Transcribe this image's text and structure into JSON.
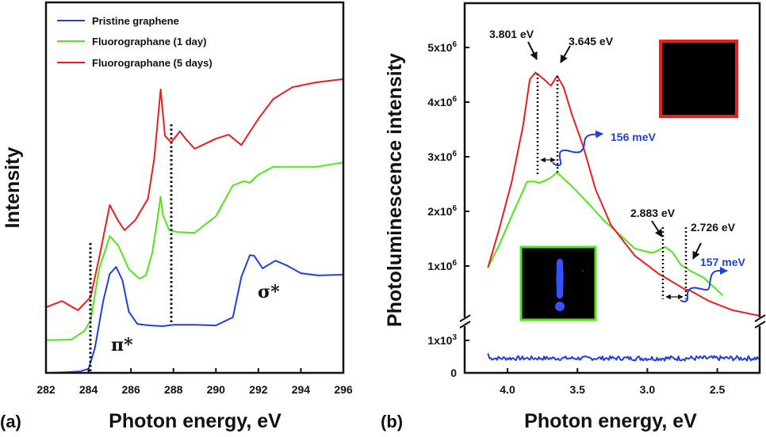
{
  "chart_data": [
    {
      "panel": "(a)",
      "type": "line",
      "title": "",
      "xlabel": "Photon energy, eV",
      "ylabel": "Intensity",
      "xlim": [
        282,
        296
      ],
      "ylim": [
        0,
        100
      ],
      "x_ticks": [
        282,
        284,
        286,
        288,
        290,
        292,
        294,
        296
      ],
      "x_tick_labels": [
        "282",
        "284",
        "286",
        "288",
        "290",
        "292",
        "294",
        "296"
      ],
      "grid": false,
      "legend": {
        "placement": "top-left",
        "entries": [
          "Pristine graphene",
          "Fluorographane (1 day)",
          "Fluorographane (5 days)"
        ]
      },
      "series": [
        {
          "name": "Pristine graphene",
          "color": "#1f3fe0",
          "x": [
            282.0,
            283.0,
            283.6,
            284.0,
            284.3,
            284.7,
            285.0,
            285.3,
            285.6,
            285.9,
            286.3,
            286.9,
            287.5,
            288.0,
            289.0,
            290.0,
            290.8,
            291.2,
            291.6,
            291.8,
            292.2,
            292.8,
            293.3,
            294.0,
            294.8,
            296.0
          ],
          "y": [
            0.0,
            0.2,
            0.4,
            1.1,
            6.6,
            19.5,
            26.7,
            28.6,
            25.0,
            16.5,
            13.2,
            12.8,
            12.6,
            13.0,
            13.0,
            12.8,
            15.0,
            25.9,
            31.8,
            31.6,
            28.2,
            30.3,
            29.1,
            26.9,
            26.3,
            26.5
          ]
        },
        {
          "name": "Fluorographane (1 day)",
          "color": "#4ee619",
          "x": [
            282.0,
            283.2,
            283.8,
            284.1,
            284.5,
            285.0,
            285.4,
            285.9,
            286.4,
            286.7,
            287.0,
            287.2,
            287.4,
            287.5,
            287.8,
            288.2,
            289.0,
            290.0,
            290.8,
            291.3,
            291.6,
            292.0,
            292.7,
            293.3,
            294.7,
            296.0
          ],
          "y": [
            8.8,
            9.0,
            11.3,
            14.1,
            28.0,
            36.9,
            34.4,
            28.0,
            25.4,
            26.3,
            32.3,
            39.7,
            47.6,
            42.7,
            38.5,
            38.0,
            37.8,
            42.3,
            50.6,
            51.7,
            51.3,
            53.5,
            55.6,
            55.6,
            55.6,
            56.8
          ]
        },
        {
          "name": "Fluorographane (5 days)",
          "color": "#ee1c1c",
          "x": [
            282.0,
            282.75,
            283.5,
            284.1,
            284.5,
            285.0,
            285.4,
            285.7,
            286.2,
            286.8,
            287.1,
            287.4,
            287.6,
            287.9,
            288.3,
            288.6,
            289.0,
            290.0,
            290.6,
            291.2,
            292.0,
            292.7,
            293.6,
            294.7,
            296.0
          ],
          "y": [
            17.7,
            19.4,
            16.9,
            20.5,
            31.0,
            45.3,
            41.0,
            38.5,
            41.2,
            47.0,
            58.0,
            76.5,
            64.0,
            62.2,
            65.2,
            63.0,
            60.5,
            63.2,
            64.3,
            61.5,
            68.6,
            73.9,
            77.1,
            78.4,
            79.3
          ]
        }
      ],
      "annotations": [
        {
          "text": "π*",
          "x": 285.5,
          "y": 10
        },
        {
          "text": "σ*",
          "x": 292.4,
          "y": 27
        },
        {
          "type": "vline-dotted",
          "x": 284.1,
          "y_range": [
            0,
            35
          ]
        },
        {
          "type": "vline-dotted",
          "x": 287.9,
          "y_range": [
            13,
            67
          ]
        }
      ]
    },
    {
      "panel": "(b)",
      "type": "line",
      "title": "",
      "xlabel": "Photon energy, eV",
      "ylabel": "Photoluminescence intensity",
      "xlim": [
        4.31,
        2.2
      ],
      "x_reversed": true,
      "x_ticks": [
        4.0,
        3.5,
        3.0,
        2.5
      ],
      "x_tick_labels": [
        "4.0",
        "3.5",
        "3.0",
        "2.5"
      ],
      "y_axis_break": true,
      "ylim_lower": [
        0,
        1000
      ],
      "ylim_upper": [
        0,
        5900000
      ],
      "y_ticks_lower": [
        0,
        1000
      ],
      "y_tick_labels_lower": [
        "0",
        "1x10^3"
      ],
      "y_ticks_upper": [
        1000000,
        2000000,
        3000000,
        4000000,
        5000000
      ],
      "y_tick_labels_upper": [
        {
          "base": "1x10",
          "exp": "6"
        },
        {
          "base": "2x10",
          "exp": "6"
        },
        {
          "base": "3x10",
          "exp": "6"
        },
        {
          "base": "4x10",
          "exp": "6"
        },
        {
          "base": "5x10",
          "exp": "6"
        }
      ],
      "grid": false,
      "series": [
        {
          "name": "Pristine graphene",
          "color": "#1f3fe0",
          "segment": "lower",
          "x_range": [
            4.14,
            2.2
          ],
          "mean_y": 450,
          "noise_amplitude": 70,
          "start_y": 600
        },
        {
          "name": "Fluorographane (1 day)",
          "color": "#4ee619",
          "segment": "upper",
          "x": [
            4.14,
            4.06,
            3.95,
            3.86,
            3.81,
            3.77,
            3.7,
            3.645,
            3.54,
            3.43,
            3.31,
            3.14,
            3.09,
            3.03,
            2.97,
            2.95,
            2.89,
            2.87,
            2.82,
            2.76,
            2.72,
            2.7,
            2.6,
            2.46
          ],
          "y": [
            970000,
            1380000,
            2030000,
            2540000,
            2550000,
            2520000,
            2600000,
            2710000,
            2460000,
            2170000,
            1830000,
            1440000,
            1320000,
            1280000,
            1240000,
            1250000,
            1330000,
            1350000,
            1250000,
            1020000,
            960000,
            920000,
            790000,
            460000
          ]
        },
        {
          "name": "Fluorographane (5 days)",
          "color": "#ee1c1c",
          "x": [
            4.14,
            4.06,
            3.97,
            3.89,
            3.84,
            3.8,
            3.74,
            3.69,
            3.645,
            3.6,
            3.54,
            3.46,
            3.37,
            3.26,
            3.09,
            2.92,
            2.88,
            2.73,
            2.7,
            2.56,
            2.39,
            2.2
          ],
          "segment": "upper",
          "y": [
            970000,
            1670000,
            2540000,
            3550000,
            4420000,
            4540000,
            4420000,
            4300000,
            4480000,
            4280000,
            3780000,
            3200000,
            2400000,
            1750000,
            1190000,
            860000,
            800000,
            570000,
            560000,
            360000,
            190000,
            90000
          ]
        }
      ],
      "annotations": [
        {
          "text": "3.801 eV",
          "points_to_x": 3.801
        },
        {
          "text": "3.645 eV",
          "points_to_x": 3.645
        },
        {
          "text": "156 meV",
          "color": "#1f3fe0",
          "spans": [
            3.801,
            3.645
          ]
        },
        {
          "text": "2.883 eV",
          "points_to_x": 2.883
        },
        {
          "text": "2.726 eV",
          "points_to_x": 2.726
        },
        {
          "text": "157 meV",
          "color": "#1f3fe0",
          "spans": [
            2.883,
            2.726
          ]
        }
      ],
      "insets": [
        {
          "name": "fluorographane-5-days-image",
          "border_color": "#ee1c1c",
          "content": "dark (no emission)",
          "placement": "top-right"
        },
        {
          "name": "fluorographane-1-day-image",
          "border_color": "#4ee619",
          "content": "blue emission exclamation mark",
          "placement": "bottom-left"
        }
      ]
    }
  ],
  "labels": {
    "panel_a": "(a)",
    "panel_b": "(b)",
    "xlabel_a": "Photon energy, eV",
    "xlabel_b": "Photon energy, eV",
    "ylabel_a": "Intensity",
    "ylabel_b": "Photoluminescence intensity",
    "legend_1": "Pristine graphene",
    "legend_2": "Fluorographane (1 day)",
    "legend_3": "Fluorographane (5 days)",
    "pi_star": "π*",
    "sigma_star": "σ*",
    "anno_3801": "3.801 eV",
    "anno_3645": "3.645 eV",
    "anno_156": "156 meV",
    "anno_2883": "2.883 eV",
    "anno_2726": "2.726 eV",
    "anno_157": "157 meV",
    "y_lower_0": "0",
    "y_lower_1e3_base": "1x10",
    "y_lower_1e3_exp": "3"
  }
}
